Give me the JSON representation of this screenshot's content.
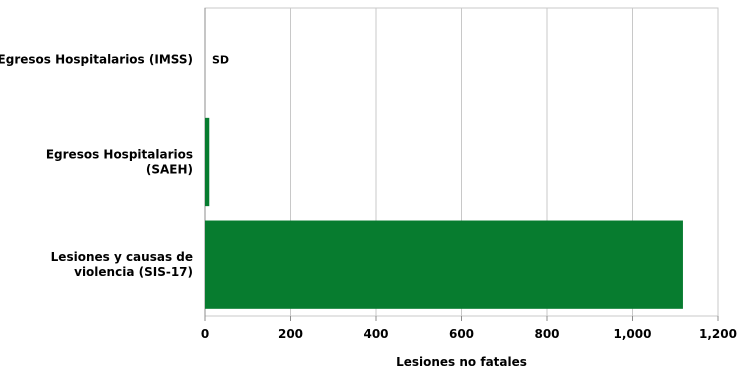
{
  "chart_data": {
    "type": "bar",
    "orientation": "horizontal",
    "categories": [
      "Egresos Hospitalarios (IMSS)",
      "Egresos Hospitalarios (SAEH)",
      "Lesiones y causas de violencia (SIS-17)"
    ],
    "category_lines": [
      [
        "Egresos Hospitalarios (IMSS)"
      ],
      [
        "Egresos Hospitalarios",
        "(SAEH)"
      ],
      [
        "Lesiones y causas de",
        "violencia (SIS-17)"
      ]
    ],
    "values": [
      null,
      10,
      1118
    ],
    "data_labels": [
      "SD",
      "",
      ""
    ],
    "xlabel": "Lesiones no fatales",
    "ylabel": "",
    "title": "",
    "xlim": [
      0,
      1200
    ],
    "xticks": [
      0,
      200,
      400,
      600,
      800,
      1000,
      1200
    ],
    "xtick_labels": [
      "0",
      "200",
      "400",
      "600",
      "800",
      "1,000",
      "1,200"
    ],
    "grid": true,
    "legend": "none",
    "colors": {
      "bar": "#077c2f",
      "grid": "#c8c8c8",
      "axis": "#8c8c8c",
      "text": "#000000"
    }
  }
}
